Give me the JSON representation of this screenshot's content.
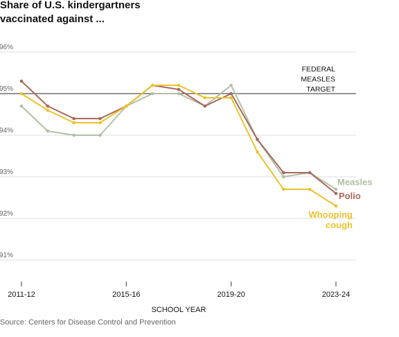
{
  "title_lines": [
    "Share of U.S. kindergartners",
    "vaccinated against ..."
  ],
  "source": "Source: Centers for Disease Control and Prevention",
  "colors": {
    "measles": "#b3bfa6",
    "polio": "#a8685a",
    "whooping_cough": "#ecc22b",
    "target_line": "#555555",
    "grid": "#dddddd",
    "text": "#121212",
    "muted": "#666666"
  },
  "chart_data": {
    "type": "line",
    "x": [
      "2011-12",
      "2012-13",
      "2013-14",
      "2014-15",
      "2015-16",
      "2016-17",
      "2017-18",
      "2018-19",
      "2019-20",
      "2020-21",
      "2021-22",
      "2022-23",
      "2023-24"
    ],
    "xlabel": "SCHOOL YEAR",
    "xticks": [
      "2011-12",
      "2015-16",
      "2019-20",
      "2023-24"
    ],
    "yticks": [
      "96%",
      "95%",
      "94%",
      "93%",
      "92%",
      "91%"
    ],
    "ytick_values": [
      96,
      95,
      94,
      93,
      92,
      91
    ],
    "ylim": [
      90.8,
      96.1
    ],
    "grid": true,
    "reference_line": {
      "value": 95,
      "label_lines": [
        "FEDERAL",
        "MEASLES",
        "TARGET"
      ]
    },
    "series": [
      {
        "name": "Measles",
        "key": "measles",
        "values": [
          94.7,
          94.1,
          94.0,
          94.0,
          94.7,
          95.0,
          95.0,
          94.7,
          95.2,
          93.9,
          93.0,
          93.1,
          92.7
        ]
      },
      {
        "name": "Polio",
        "key": "polio",
        "values": [
          95.3,
          94.7,
          94.4,
          94.4,
          94.7,
          95.2,
          95.1,
          94.7,
          95.0,
          93.9,
          93.1,
          93.1,
          92.6
        ]
      },
      {
        "name": "Whooping cough",
        "key": "whooping_cough",
        "label_lines": [
          "Whooping",
          "cough"
        ],
        "values": [
          95.0,
          94.6,
          94.3,
          94.3,
          94.7,
          95.2,
          95.2,
          94.9,
          94.9,
          93.6,
          92.7,
          92.7,
          92.3
        ]
      }
    ]
  }
}
